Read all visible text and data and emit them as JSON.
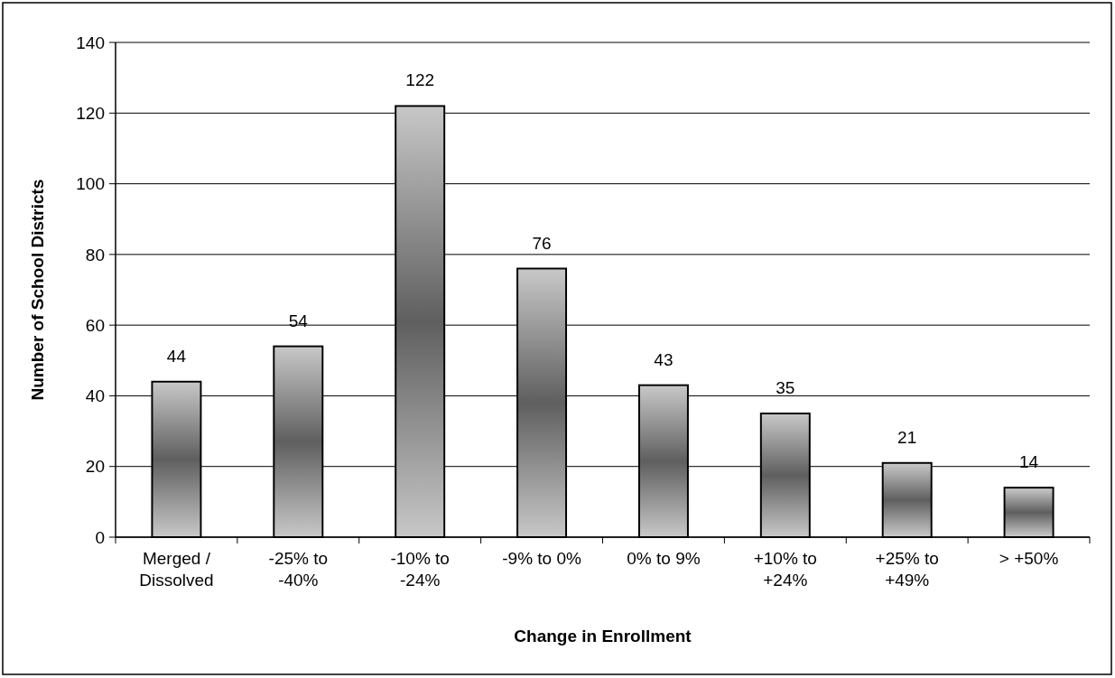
{
  "chart_data": {
    "type": "bar",
    "xlabel": "Change in Enrollment",
    "ylabel": "Number of School Districts",
    "categories": [
      "Merged / Dissolved",
      "-25% to -40%",
      "-10% to -24%",
      "-9% to 0%",
      "0% to 9%",
      "+10% to +24%",
      "+25% to +49%",
      "> +50%"
    ],
    "values": [
      44,
      54,
      122,
      76,
      43,
      35,
      21,
      14
    ],
    "color": "#5f5f5f",
    "ylim": [
      0,
      140
    ],
    "yticks": [
      0,
      20,
      40,
      60,
      80,
      100,
      120,
      140
    ],
    "grid": "y",
    "data_labels": true
  }
}
